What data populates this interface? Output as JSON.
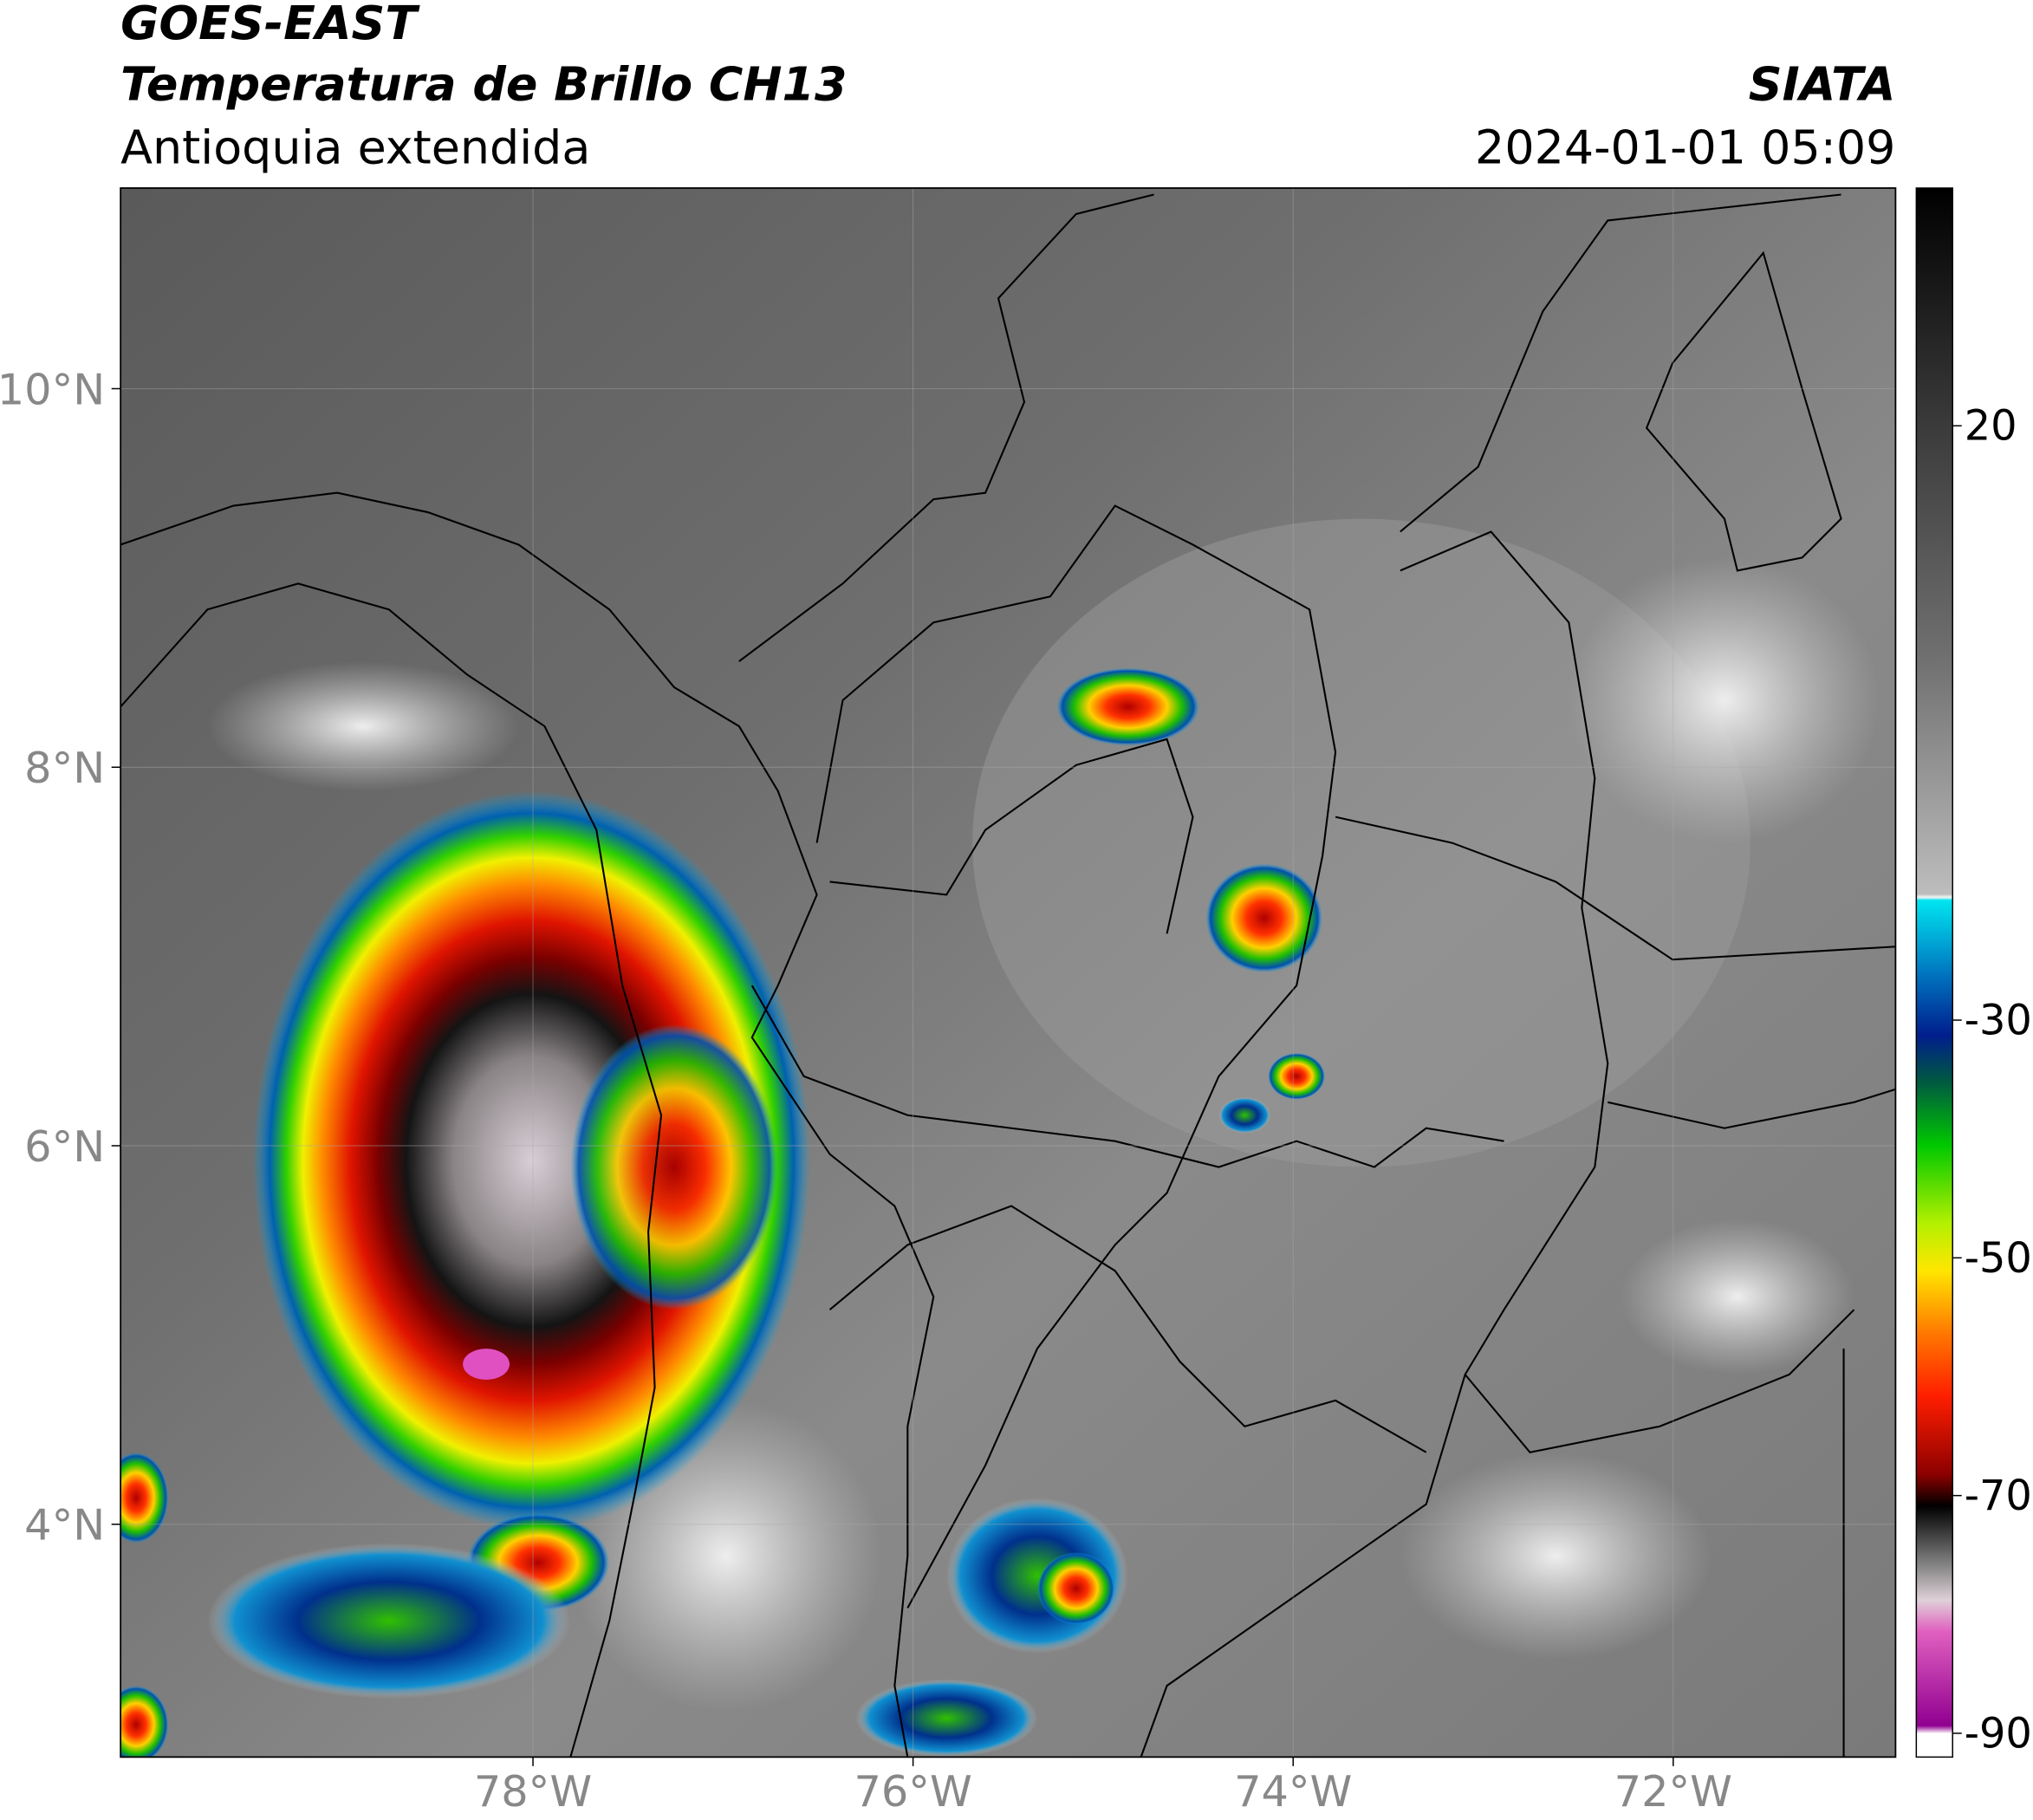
{
  "header": {
    "satellite": "GOES-EAST",
    "product": "Temperatura de Brillo CH13",
    "region": "Antioquia extendida",
    "source": "SIATA",
    "datetime": "2024-01-01 05:09"
  },
  "map": {
    "xlim": [
      -80.17,
      -70.83
    ],
    "ylim": [
      2.77,
      11.06
    ],
    "xticks": [
      {
        "value": -78,
        "label": "78°W"
      },
      {
        "value": -76,
        "label": "76°W"
      },
      {
        "value": -74,
        "label": "74°W"
      },
      {
        "value": -72,
        "label": "72°W"
      }
    ],
    "yticks": [
      {
        "value": 4,
        "label": "4°N"
      },
      {
        "value": 6,
        "label": "6°N"
      },
      {
        "value": 8,
        "label": "8°N"
      },
      {
        "value": 10,
        "label": "10°N"
      }
    ]
  },
  "colorbar": {
    "lim": [
      -92,
      40
    ],
    "ticks": [
      20,
      -30,
      -50,
      -70,
      -90
    ]
  }
}
